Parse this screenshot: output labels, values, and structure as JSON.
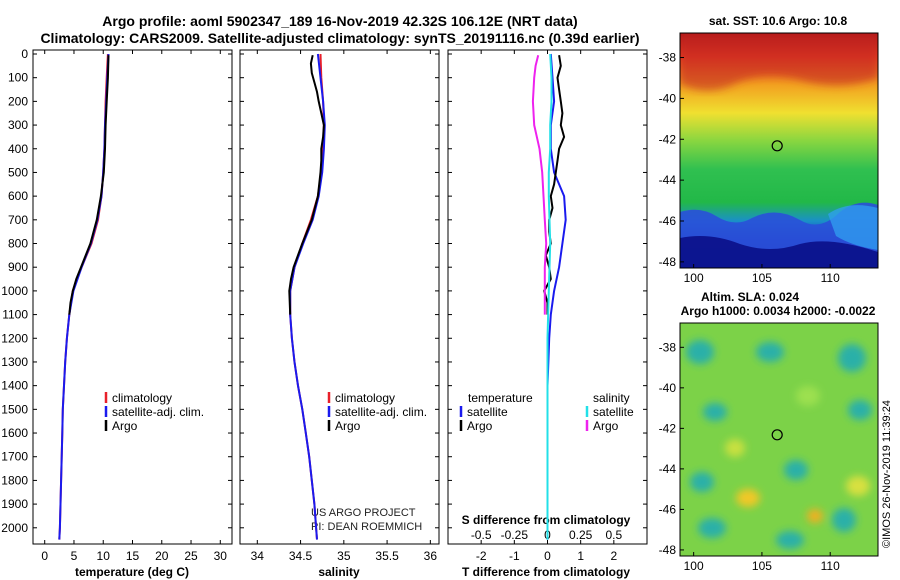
{
  "title": {
    "line1": "Argo profile: aoml 5902347_189 16-Nov-2019 42.32S 106.12E (NRT data)",
    "line2": "Climatology: CARS2009. Satellite-adjusted climatology: synTS_20191116.nc (0.39d earlier)"
  },
  "colors": {
    "climatology": "#e8202a",
    "satellite": "#1a1aee",
    "argo": "#000000",
    "s_satellite": "#22e0e8",
    "s_argo": "#ee22ee"
  },
  "depth_ticks": [
    "0",
    "100",
    "200",
    "300",
    "400",
    "500",
    "600",
    "700",
    "800",
    "900",
    "1000",
    "1100",
    "1200",
    "1300",
    "1400",
    "1500",
    "1600",
    "1700",
    "1800",
    "1900",
    "2000"
  ],
  "chart_data": [
    {
      "id": "temperature",
      "type": "line",
      "xlabel": "temperature (deg C)",
      "xlim": [
        -2,
        32
      ],
      "ylim": [
        0,
        2060
      ],
      "xticks": [
        "0",
        "5",
        "10",
        "15",
        "20",
        "25",
        "30"
      ],
      "legend": [
        "climatology",
        "satellite-adj. clim.",
        "Argo"
      ],
      "series": [
        {
          "name": "climatology",
          "depth": [
            0,
            100,
            200,
            300,
            400,
            500,
            600,
            700,
            800,
            900,
            1000,
            1100,
            1200,
            1300,
            1400,
            1500,
            1600,
            1700,
            1800,
            1900,
            2000,
            2050
          ],
          "values": [
            10.8,
            10.6,
            10.4,
            10.3,
            10.2,
            10.0,
            9.7,
            9.1,
            8.0,
            6.3,
            4.8,
            4.2,
            3.8,
            3.5,
            3.3,
            3.1,
            3.0,
            2.9,
            2.8,
            2.7,
            2.6,
            2.5
          ]
        },
        {
          "name": "satellite-adj. clim.",
          "depth": [
            0,
            100,
            200,
            300,
            400,
            500,
            600,
            700,
            800,
            900,
            1000,
            1100,
            1200,
            1300,
            1400,
            1500,
            1600,
            1700,
            1800,
            1900,
            2000,
            2050
          ],
          "values": [
            10.9,
            10.7,
            10.5,
            10.3,
            10.2,
            10.0,
            9.7,
            9.0,
            7.9,
            6.3,
            4.9,
            4.2,
            3.8,
            3.5,
            3.3,
            3.1,
            3.0,
            2.9,
            2.8,
            2.7,
            2.6,
            2.5
          ]
        },
        {
          "name": "Argo",
          "depth": [
            5,
            100,
            200,
            300,
            400,
            500,
            600,
            700,
            800,
            900,
            950,
            1000,
            1050,
            1100
          ],
          "values": [
            10.9,
            10.8,
            10.6,
            10.4,
            10.3,
            10.1,
            9.6,
            8.9,
            7.8,
            6.2,
            5.4,
            4.8,
            4.4,
            4.2
          ]
        }
      ]
    },
    {
      "id": "salinity",
      "type": "line",
      "xlabel": "salinity",
      "xlim": [
        33.8,
        36.1
      ],
      "ylim": [
        0,
        2060
      ],
      "xticks": [
        "34",
        "34.5",
        "35",
        "35.5",
        "36"
      ],
      "legend": [
        "climatology",
        "satellite-adj. clim.",
        "Argo"
      ],
      "annotation": [
        "US ARGO PROJECT",
        "PI: DEAN ROEMMICH"
      ],
      "series": [
        {
          "name": "climatology",
          "depth": [
            0,
            100,
            200,
            300,
            400,
            500,
            600,
            700,
            800,
            900,
            1000,
            1100,
            1200,
            1300,
            1400,
            1500,
            1600,
            1700,
            1800,
            1900,
            2000,
            2050
          ],
          "values": [
            34.73,
            34.74,
            34.76,
            34.77,
            34.76,
            34.74,
            34.7,
            34.62,
            34.52,
            34.43,
            34.38,
            34.38,
            34.4,
            34.43,
            34.47,
            34.52,
            34.56,
            34.6,
            34.63,
            34.66,
            34.68,
            34.69
          ]
        },
        {
          "name": "satellite-adj. clim.",
          "depth": [
            0,
            100,
            200,
            300,
            400,
            500,
            600,
            700,
            800,
            900,
            1000,
            1100,
            1200,
            1300,
            1400,
            1500,
            1600,
            1700,
            1800,
            1900,
            2000,
            2050
          ],
          "values": [
            34.7,
            34.73,
            34.76,
            34.78,
            34.77,
            34.75,
            34.71,
            34.64,
            34.53,
            34.43,
            34.38,
            34.38,
            34.4,
            34.43,
            34.47,
            34.52,
            34.56,
            34.6,
            34.63,
            34.66,
            34.68,
            34.69
          ]
        },
        {
          "name": "Argo",
          "depth": [
            5,
            40,
            80,
            120,
            160,
            200,
            250,
            300,
            350,
            400,
            450,
            500,
            600,
            700,
            800,
            900,
            950,
            1000,
            1100
          ],
          "values": [
            34.64,
            34.62,
            34.63,
            34.66,
            34.69,
            34.71,
            34.74,
            34.77,
            34.76,
            34.74,
            34.74,
            34.73,
            34.7,
            34.63,
            34.52,
            34.42,
            34.39,
            34.37,
            34.38
          ]
        }
      ]
    },
    {
      "id": "difference",
      "type": "line",
      "xlabel": "T difference from climatology",
      "xlabel_top": "S difference from climatology",
      "xlim": [
        -3,
        3
      ],
      "ylim": [
        0,
        2060
      ],
      "xticks": [
        "-2",
        "-1",
        "0",
        "1",
        "2"
      ],
      "xticks_top": [
        "-0.5",
        "-0.25",
        "0",
        "0.25",
        "0.5"
      ],
      "legend_temperature": {
        "title": "temperature",
        "items": [
          "satellite",
          "Argo"
        ]
      },
      "legend_salinity": {
        "title": "salinity",
        "items": [
          "satellite",
          "Argo"
        ]
      },
      "series": [
        {
          "name": "T satellite",
          "depth": [
            0,
            100,
            200,
            300,
            400,
            500,
            600,
            700,
            800,
            900,
            1000,
            1100,
            1200,
            1400,
            1600,
            1800,
            2000,
            2050
          ],
          "values": [
            0.1,
            0.15,
            0.2,
            0.1,
            0.1,
            0.2,
            0.5,
            0.55,
            0.45,
            0.35,
            0.2,
            0.1,
            0.05,
            0.0,
            0.0,
            0.0,
            0.0,
            0.0
          ]
        },
        {
          "name": "T Argo",
          "depth": [
            5,
            50,
            100,
            150,
            200,
            250,
            300,
            350,
            400,
            450,
            500,
            550,
            600,
            650,
            700,
            750,
            800,
            850,
            900,
            950,
            1000,
            1050,
            1100
          ],
          "values": [
            0.35,
            0.4,
            0.3,
            0.35,
            0.4,
            0.45,
            0.4,
            0.5,
            0.35,
            0.3,
            0.25,
            0.2,
            0.1,
            0.15,
            0.05,
            0.05,
            0.1,
            -0.05,
            0.05,
            0.1,
            -0.1,
            0.0,
            0.0
          ]
        },
        {
          "name": "S satellite",
          "depth": [
            0,
            100,
            200,
            300,
            400,
            500,
            600,
            800,
            1000,
            1200,
            1400,
            1600,
            1800,
            2000,
            2050
          ],
          "values": [
            0.02,
            0.03,
            0.03,
            0.02,
            0.02,
            0.01,
            0.01,
            0.02,
            0.01,
            0.0,
            0.0,
            0.0,
            0.0,
            0.0,
            0.0
          ]
        },
        {
          "name": "S Argo",
          "depth": [
            5,
            50,
            100,
            200,
            300,
            400,
            500,
            600,
            700,
            800,
            900,
            1000,
            1100
          ],
          "values": [
            -0.07,
            -0.09,
            -0.1,
            -0.11,
            -0.1,
            -0.06,
            -0.04,
            -0.03,
            -0.02,
            -0.01,
            -0.02,
            -0.02,
            -0.02
          ]
        }
      ]
    },
    {
      "id": "sst_map",
      "type": "heatmap",
      "title": "sat. SST: 10.6 Argo: 10.8",
      "xticks": [
        "100",
        "105",
        "110"
      ],
      "yticks": [
        "-38",
        "-40",
        "-42",
        "-44",
        "-46",
        "-48"
      ],
      "xlim": [
        99,
        113.5
      ],
      "ylim": [
        -48.3,
        -36.8
      ],
      "marker": {
        "lon": 106.12,
        "lat": -42.32
      }
    },
    {
      "id": "sla_map",
      "type": "heatmap",
      "title": "Altim. SLA: 0.024",
      "subtitle": "Argo h1000: 0.0034 h2000: -0.0022",
      "xticks": [
        "100",
        "105",
        "110"
      ],
      "yticks": [
        "-38",
        "-40",
        "-42",
        "-44",
        "-46",
        "-48"
      ],
      "xlim": [
        99,
        113.5
      ],
      "ylim": [
        -48.3,
        -36.8
      ],
      "marker": {
        "lon": 106.12,
        "lat": -42.32
      }
    }
  ],
  "credit": "©IMOS 26-Nov-2019 11:39:24"
}
